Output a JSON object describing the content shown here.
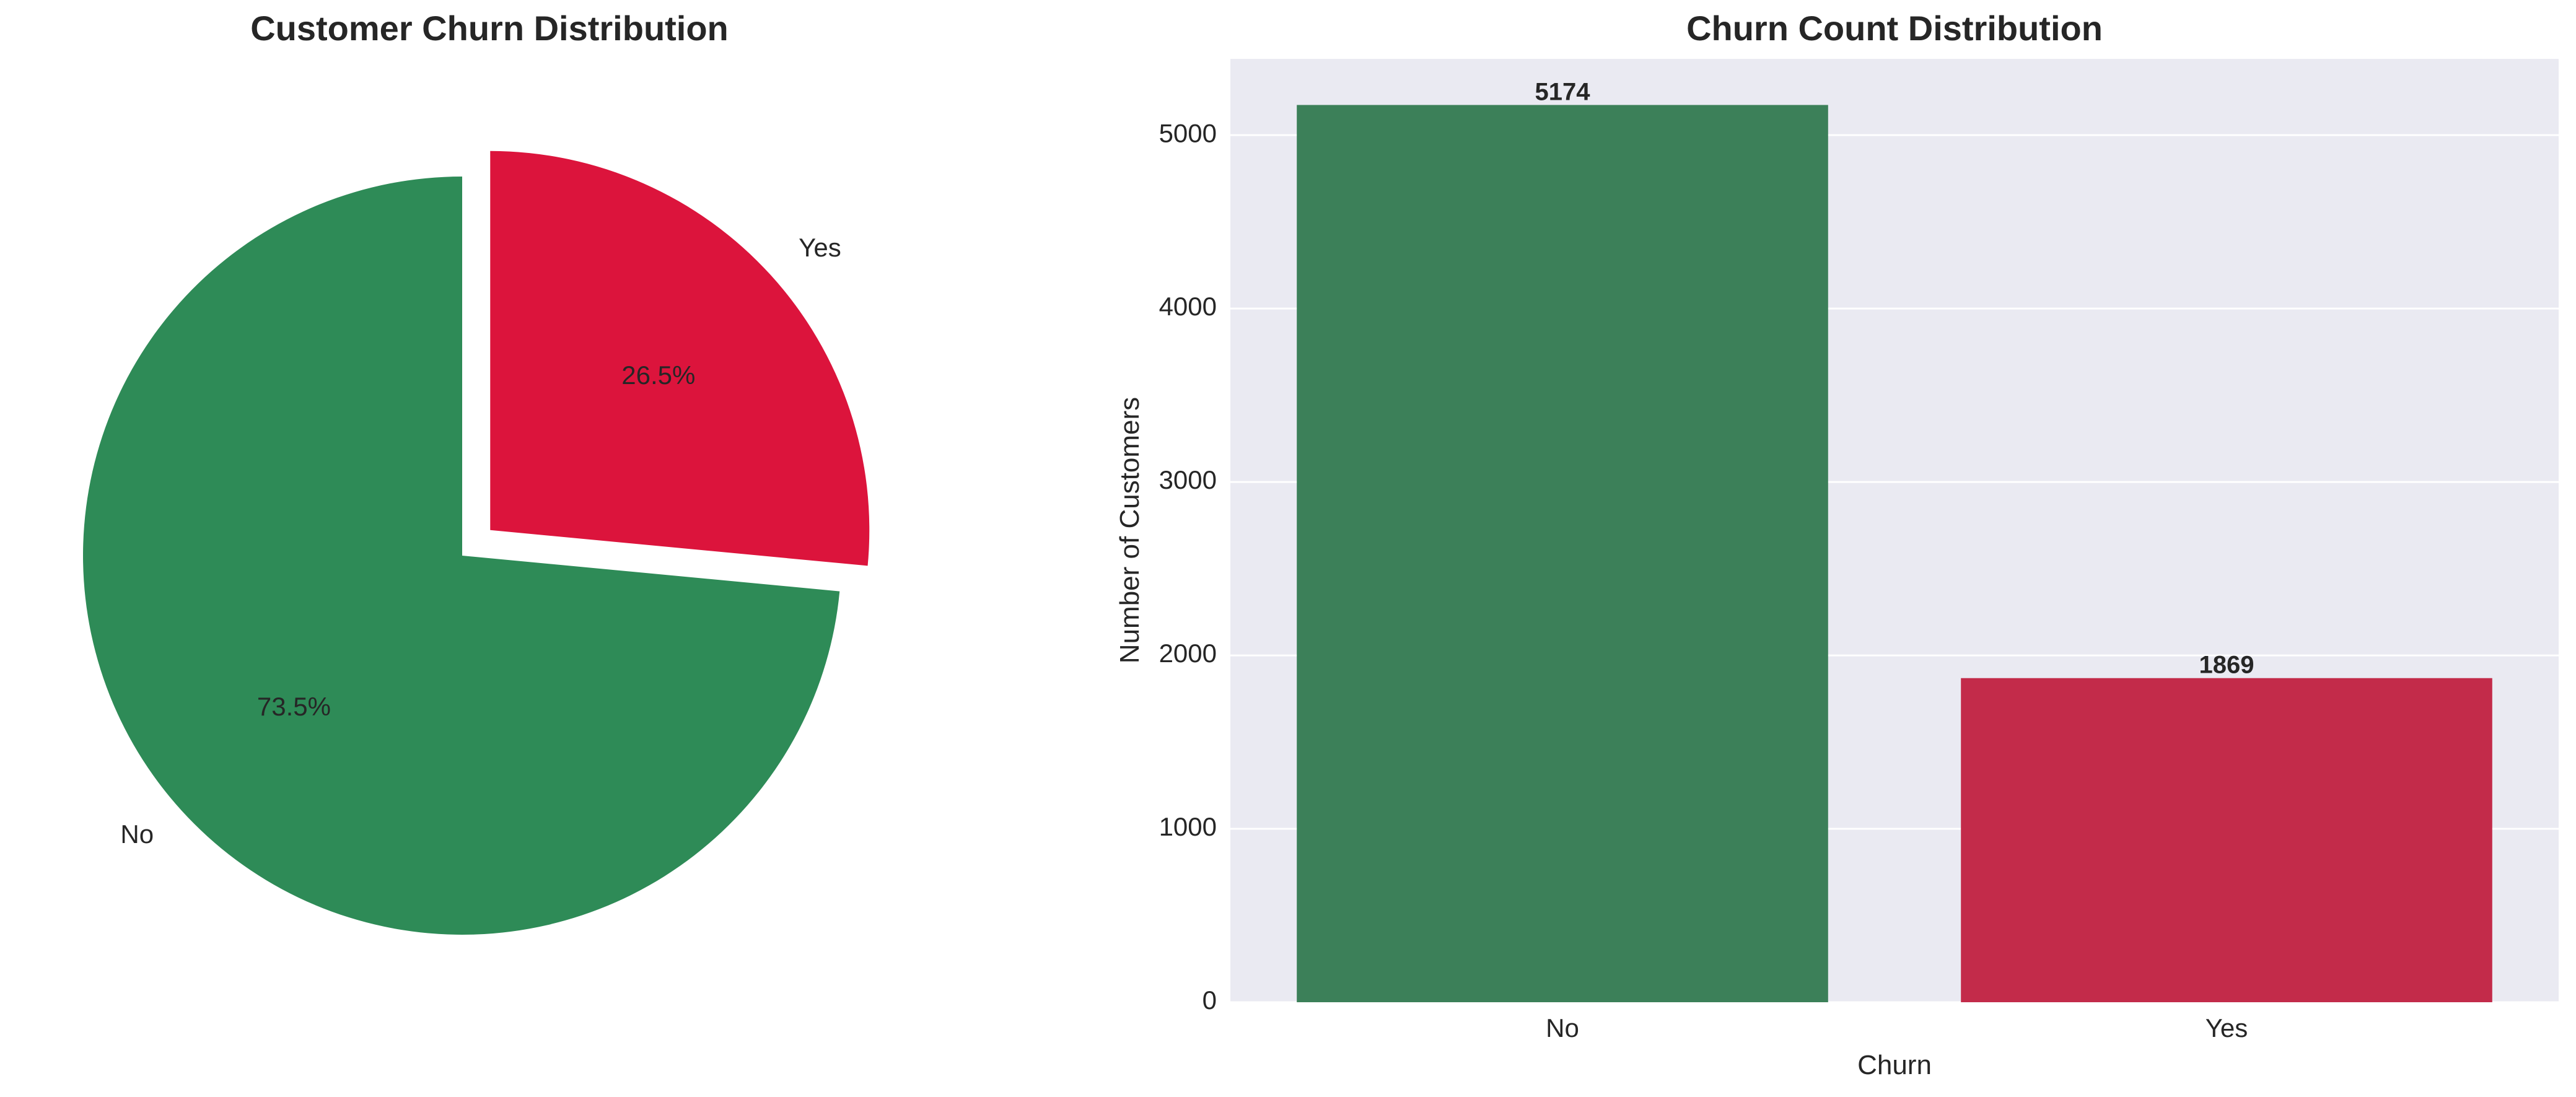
{
  "colors": {
    "no": "#2e8b57",
    "yes": "#dc143c",
    "no_bar": "#3c8059",
    "yes_bar": "#c32b4a",
    "plot_bg": "#eaeaf2",
    "grid": "#ffffff",
    "text": "#262626"
  },
  "chart_data": [
    {
      "type": "pie",
      "title": "Customer Churn Distribution",
      "categories": [
        "No",
        "Yes"
      ],
      "values": [
        73.5,
        26.5
      ],
      "value_labels": [
        "73.5%",
        "26.5%"
      ],
      "exploded": [
        "Yes"
      ],
      "start_angle_deg": 90,
      "colors": [
        "#2e8b57",
        "#dc143c"
      ]
    },
    {
      "type": "bar",
      "title": "Churn Count Distribution",
      "categories": [
        "No",
        "Yes"
      ],
      "values": [
        5174,
        1869
      ],
      "value_labels": [
        "5174",
        "1869"
      ],
      "xlabel": "Churn",
      "ylabel": "Number of Customers",
      "ylim": [
        0,
        5440
      ],
      "yticks": [
        0,
        1000,
        2000,
        3000,
        4000,
        5000
      ],
      "ytick_labels": [
        "0",
        "1000",
        "2000",
        "3000",
        "4000",
        "5000"
      ],
      "grid": true,
      "colors": [
        "#3c8059",
        "#c32b4a"
      ]
    }
  ]
}
